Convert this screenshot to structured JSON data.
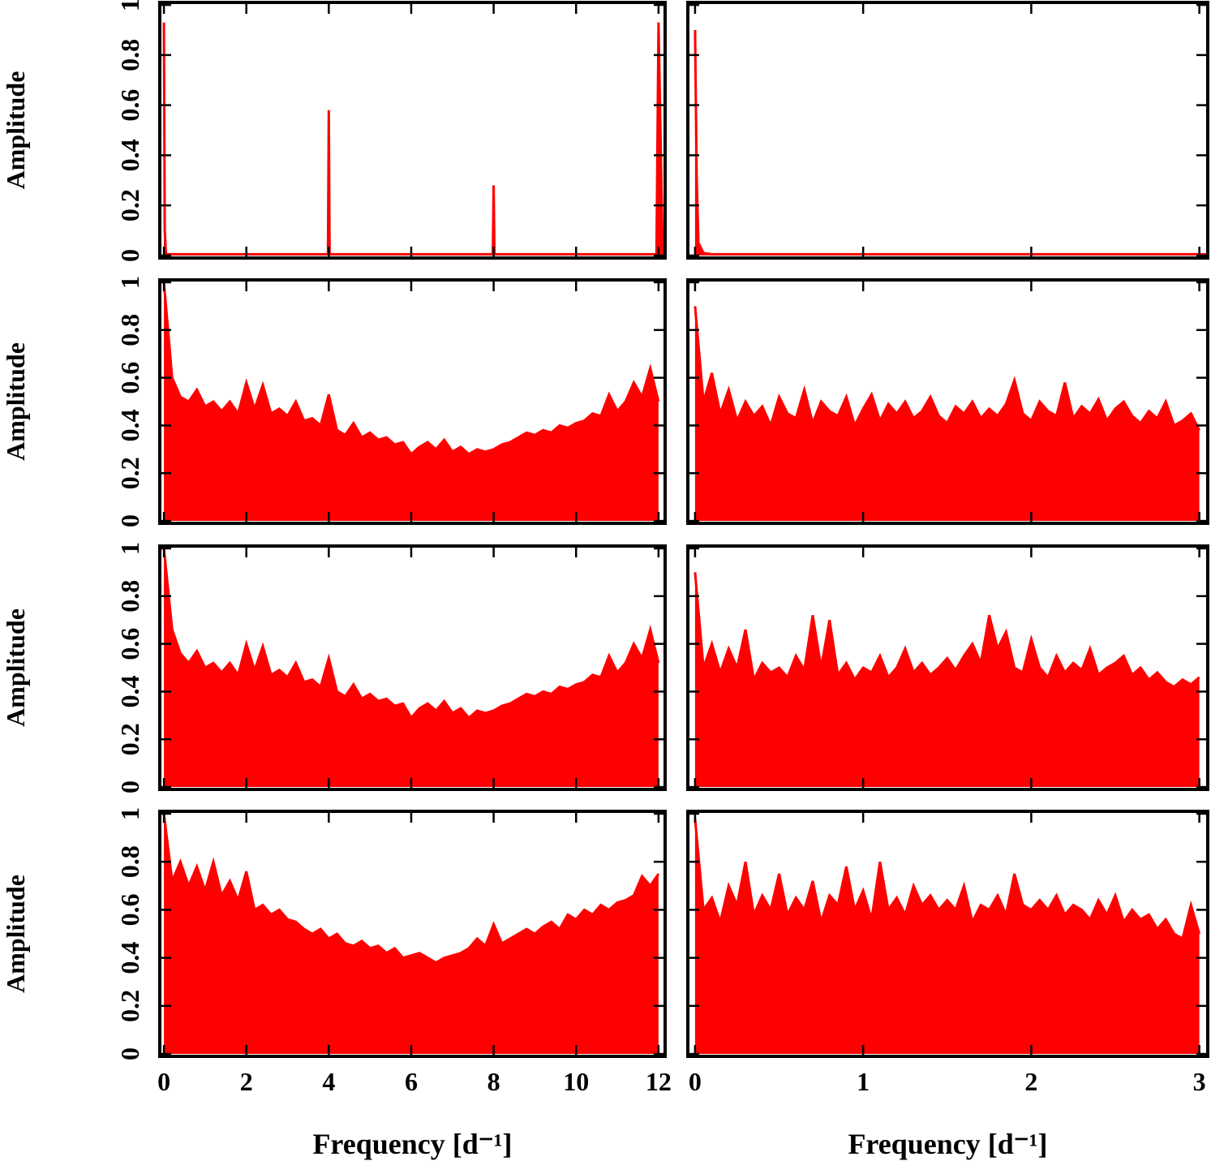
{
  "chart_data": [
    {
      "type": "area",
      "color": "#ff0000",
      "ylabel": "Amplitude",
      "xlim": [
        -0.1,
        12.16
      ],
      "ylim": [
        -0.01,
        1.01
      ],
      "xticks": [
        0,
        2,
        4,
        6,
        8,
        10,
        12
      ],
      "yticks": [
        0,
        0.2,
        0.4,
        0.6,
        0.8,
        1
      ],
      "xtick_labels": false,
      "ytick_labels": true,
      "x": [
        0,
        0.02,
        0.05,
        3.98,
        4,
        4.02,
        7.98,
        8,
        8.02,
        11.95,
        12,
        12.1
      ],
      "values": [
        0.93,
        0.1,
        0.005,
        0.005,
        0.58,
        0.005,
        0.005,
        0.28,
        0.005,
        0.005,
        0.93,
        0.005
      ]
    },
    {
      "type": "area",
      "color": "#ff0000",
      "xlim": [
        -0.043,
        3.05
      ],
      "ylim": [
        -0.01,
        1.01
      ],
      "xticks": [
        0,
        1,
        2,
        3
      ],
      "yticks": [
        0,
        0.2,
        0.4,
        0.6,
        0.8,
        1
      ],
      "xtick_labels": false,
      "ytick_labels": false,
      "x": [
        0,
        0.01,
        0.02,
        0.05,
        0.1,
        3.05
      ],
      "values": [
        0.9,
        0.3,
        0.05,
        0.01,
        0.005,
        0.005
      ]
    },
    {
      "type": "area",
      "color": "#ff0000",
      "ylabel": "Amplitude",
      "xlim": [
        -0.1,
        12.16
      ],
      "ylim": [
        -0.01,
        1.01
      ],
      "xticks": [
        0,
        2,
        4,
        6,
        8,
        10,
        12
      ],
      "yticks": [
        0,
        0.2,
        0.4,
        0.6,
        0.8,
        1
      ],
      "xtick_labels": false,
      "ytick_labels": true,
      "x": [
        0,
        0.2,
        0.4,
        0.6,
        0.8,
        1,
        1.2,
        1.4,
        1.6,
        1.8,
        2,
        2.2,
        2.4,
        2.6,
        2.8,
        3,
        3.2,
        3.4,
        3.6,
        3.8,
        4,
        4.2,
        4.4,
        4.6,
        4.8,
        5,
        5.2,
        5.4,
        5.6,
        5.8,
        6,
        6.2,
        6.4,
        6.6,
        6.8,
        7,
        7.2,
        7.4,
        7.6,
        7.8,
        8,
        8.2,
        8.4,
        8.6,
        8.8,
        9,
        9.2,
        9.4,
        9.6,
        9.8,
        10,
        10.2,
        10.4,
        10.6,
        10.8,
        11,
        11.2,
        11.4,
        11.6,
        11.8,
        12
      ],
      "values": [
        1.0,
        0.6,
        0.52,
        0.5,
        0.55,
        0.48,
        0.5,
        0.46,
        0.5,
        0.45,
        0.58,
        0.47,
        0.57,
        0.45,
        0.47,
        0.44,
        0.5,
        0.42,
        0.43,
        0.4,
        0.53,
        0.38,
        0.36,
        0.41,
        0.35,
        0.37,
        0.34,
        0.35,
        0.32,
        0.33,
        0.28,
        0.31,
        0.33,
        0.3,
        0.34,
        0.29,
        0.31,
        0.28,
        0.3,
        0.29,
        0.3,
        0.32,
        0.33,
        0.35,
        0.37,
        0.36,
        0.38,
        0.37,
        0.4,
        0.39,
        0.41,
        0.42,
        0.45,
        0.44,
        0.53,
        0.46,
        0.5,
        0.58,
        0.52,
        0.64,
        0.5
      ]
    },
    {
      "type": "area",
      "color": "#ff0000",
      "xlim": [
        -0.043,
        3.05
      ],
      "ylim": [
        -0.01,
        1.01
      ],
      "xticks": [
        0,
        1,
        2,
        3
      ],
      "yticks": [
        0,
        0.2,
        0.4,
        0.6,
        0.8,
        1
      ],
      "xtick_labels": false,
      "ytick_labels": false,
      "x": [
        0,
        0.05,
        0.1,
        0.15,
        0.2,
        0.25,
        0.3,
        0.35,
        0.4,
        0.45,
        0.5,
        0.55,
        0.6,
        0.65,
        0.7,
        0.75,
        0.8,
        0.85,
        0.9,
        0.95,
        1,
        1.05,
        1.1,
        1.15,
        1.2,
        1.25,
        1.3,
        1.35,
        1.4,
        1.45,
        1.5,
        1.55,
        1.6,
        1.65,
        1.7,
        1.75,
        1.8,
        1.85,
        1.9,
        1.95,
        2,
        2.05,
        2.1,
        2.15,
        2.2,
        2.25,
        2.3,
        2.35,
        2.4,
        2.45,
        2.5,
        2.55,
        2.6,
        2.65,
        2.7,
        2.75,
        2.8,
        2.85,
        2.9,
        2.95,
        3
      ],
      "values": [
        0.9,
        0.5,
        0.62,
        0.45,
        0.55,
        0.42,
        0.5,
        0.44,
        0.48,
        0.4,
        0.52,
        0.45,
        0.43,
        0.55,
        0.41,
        0.5,
        0.46,
        0.44,
        0.52,
        0.4,
        0.47,
        0.53,
        0.42,
        0.49,
        0.45,
        0.5,
        0.43,
        0.46,
        0.52,
        0.44,
        0.41,
        0.48,
        0.45,
        0.5,
        0.43,
        0.47,
        0.44,
        0.49,
        0.59,
        0.45,
        0.42,
        0.5,
        0.46,
        0.44,
        0.58,
        0.43,
        0.48,
        0.45,
        0.51,
        0.42,
        0.47,
        0.5,
        0.44,
        0.41,
        0.46,
        0.43,
        0.5,
        0.4,
        0.42,
        0.45,
        0.38
      ]
    },
    {
      "type": "area",
      "color": "#ff0000",
      "ylabel": "Amplitude",
      "xlim": [
        -0.1,
        12.16
      ],
      "ylim": [
        -0.01,
        1.01
      ],
      "xticks": [
        0,
        2,
        4,
        6,
        8,
        10,
        12
      ],
      "yticks": [
        0,
        0.2,
        0.4,
        0.6,
        0.8,
        1
      ],
      "xtick_labels": false,
      "ytick_labels": true,
      "x": [
        0,
        0.2,
        0.4,
        0.6,
        0.8,
        1,
        1.2,
        1.4,
        1.6,
        1.8,
        2,
        2.2,
        2.4,
        2.6,
        2.8,
        3,
        3.2,
        3.4,
        3.6,
        3.8,
        4,
        4.2,
        4.4,
        4.6,
        4.8,
        5,
        5.2,
        5.4,
        5.6,
        5.8,
        6,
        6.2,
        6.4,
        6.6,
        6.8,
        7,
        7.2,
        7.4,
        7.6,
        7.8,
        8,
        8.2,
        8.4,
        8.6,
        8.8,
        9,
        9.2,
        9.4,
        9.6,
        9.8,
        10,
        10.2,
        10.4,
        10.6,
        10.8,
        11,
        11.2,
        11.4,
        11.6,
        11.8,
        12
      ],
      "values": [
        1.0,
        0.66,
        0.56,
        0.52,
        0.57,
        0.5,
        0.52,
        0.48,
        0.52,
        0.47,
        0.6,
        0.49,
        0.59,
        0.47,
        0.49,
        0.46,
        0.52,
        0.44,
        0.45,
        0.42,
        0.54,
        0.4,
        0.38,
        0.43,
        0.37,
        0.39,
        0.36,
        0.37,
        0.34,
        0.35,
        0.29,
        0.33,
        0.35,
        0.32,
        0.36,
        0.31,
        0.33,
        0.29,
        0.32,
        0.31,
        0.32,
        0.34,
        0.35,
        0.37,
        0.39,
        0.38,
        0.4,
        0.39,
        0.42,
        0.41,
        0.43,
        0.44,
        0.47,
        0.46,
        0.55,
        0.48,
        0.52,
        0.6,
        0.54,
        0.66,
        0.52
      ]
    },
    {
      "type": "area",
      "color": "#ff0000",
      "xlim": [
        -0.043,
        3.05
      ],
      "ylim": [
        -0.01,
        1.01
      ],
      "xticks": [
        0,
        1,
        2,
        3
      ],
      "yticks": [
        0,
        0.2,
        0.4,
        0.6,
        0.8,
        1
      ],
      "xtick_labels": false,
      "ytick_labels": false,
      "x": [
        0,
        0.05,
        0.1,
        0.15,
        0.2,
        0.25,
        0.3,
        0.35,
        0.4,
        0.45,
        0.5,
        0.55,
        0.6,
        0.65,
        0.7,
        0.75,
        0.8,
        0.85,
        0.9,
        0.95,
        1,
        1.05,
        1.1,
        1.15,
        1.2,
        1.25,
        1.3,
        1.35,
        1.4,
        1.45,
        1.5,
        1.55,
        1.6,
        1.65,
        1.7,
        1.75,
        1.8,
        1.85,
        1.9,
        1.95,
        2,
        2.05,
        2.1,
        2.15,
        2.2,
        2.25,
        2.3,
        2.35,
        2.4,
        2.45,
        2.5,
        2.55,
        2.6,
        2.65,
        2.7,
        2.75,
        2.8,
        2.85,
        2.9,
        2.95,
        3
      ],
      "values": [
        0.9,
        0.5,
        0.6,
        0.48,
        0.58,
        0.5,
        0.66,
        0.45,
        0.52,
        0.48,
        0.5,
        0.46,
        0.55,
        0.49,
        0.72,
        0.5,
        0.7,
        0.47,
        0.52,
        0.45,
        0.5,
        0.48,
        0.55,
        0.46,
        0.5,
        0.58,
        0.48,
        0.52,
        0.47,
        0.5,
        0.54,
        0.49,
        0.55,
        0.6,
        0.52,
        0.72,
        0.58,
        0.65,
        0.5,
        0.48,
        0.62,
        0.5,
        0.46,
        0.55,
        0.48,
        0.52,
        0.49,
        0.58,
        0.47,
        0.5,
        0.52,
        0.55,
        0.47,
        0.5,
        0.45,
        0.48,
        0.44,
        0.42,
        0.45,
        0.43,
        0.46
      ]
    },
    {
      "type": "area",
      "color": "#ff0000",
      "ylabel": "Amplitude",
      "xlabel": "Frequency [d⁻¹]",
      "xlim": [
        -0.1,
        12.16
      ],
      "ylim": [
        -0.01,
        1.01
      ],
      "xticks": [
        0,
        2,
        4,
        6,
        8,
        10,
        12
      ],
      "yticks": [
        0,
        0.2,
        0.4,
        0.6,
        0.8,
        1
      ],
      "xtick_labels": true,
      "ytick_labels": true,
      "x": [
        0,
        0.2,
        0.4,
        0.6,
        0.8,
        1,
        1.2,
        1.4,
        1.6,
        1.8,
        2,
        2.2,
        2.4,
        2.6,
        2.8,
        3,
        3.2,
        3.4,
        3.6,
        3.8,
        4,
        4.2,
        4.4,
        4.6,
        4.8,
        5,
        5.2,
        5.4,
        5.6,
        5.8,
        6,
        6.2,
        6.4,
        6.6,
        6.8,
        7,
        7.2,
        7.4,
        7.6,
        7.8,
        8,
        8.2,
        8.4,
        8.6,
        8.8,
        9,
        9.2,
        9.4,
        9.6,
        9.8,
        10,
        10.2,
        10.4,
        10.6,
        10.8,
        11,
        11.2,
        11.4,
        11.6,
        11.8,
        12
      ],
      "values": [
        1.0,
        0.72,
        0.8,
        0.7,
        0.78,
        0.68,
        0.8,
        0.66,
        0.72,
        0.64,
        0.76,
        0.6,
        0.62,
        0.58,
        0.6,
        0.56,
        0.55,
        0.52,
        0.5,
        0.52,
        0.48,
        0.5,
        0.46,
        0.45,
        0.47,
        0.44,
        0.45,
        0.42,
        0.44,
        0.4,
        0.41,
        0.42,
        0.4,
        0.38,
        0.4,
        0.41,
        0.42,
        0.44,
        0.48,
        0.45,
        0.54,
        0.46,
        0.48,
        0.5,
        0.52,
        0.5,
        0.53,
        0.55,
        0.52,
        0.58,
        0.56,
        0.6,
        0.58,
        0.62,
        0.6,
        0.63,
        0.64,
        0.66,
        0.74,
        0.7,
        0.75
      ]
    },
    {
      "type": "area",
      "color": "#ff0000",
      "xlabel": "Frequency [d⁻¹]",
      "xlim": [
        -0.043,
        3.05
      ],
      "ylim": [
        -0.01,
        1.01
      ],
      "xticks": [
        0,
        1,
        2,
        3
      ],
      "yticks": [
        0,
        0.2,
        0.4,
        0.6,
        0.8,
        1
      ],
      "xtick_labels": true,
      "ytick_labels": false,
      "x": [
        0,
        0.05,
        0.1,
        0.15,
        0.2,
        0.25,
        0.3,
        0.35,
        0.4,
        0.45,
        0.5,
        0.55,
        0.6,
        0.65,
        0.7,
        0.75,
        0.8,
        0.85,
        0.9,
        0.95,
        1,
        1.05,
        1.1,
        1.15,
        1.2,
        1.25,
        1.3,
        1.35,
        1.4,
        1.45,
        1.5,
        1.55,
        1.6,
        1.65,
        1.7,
        1.75,
        1.8,
        1.85,
        1.9,
        1.95,
        2,
        2.05,
        2.1,
        2.15,
        2.2,
        2.25,
        2.3,
        2.35,
        2.4,
        2.45,
        2.5,
        2.55,
        2.6,
        2.65,
        2.7,
        2.75,
        2.8,
        2.85,
        2.9,
        2.95,
        3
      ],
      "values": [
        0.98,
        0.6,
        0.65,
        0.55,
        0.7,
        0.62,
        0.8,
        0.58,
        0.66,
        0.6,
        0.75,
        0.58,
        0.65,
        0.6,
        0.72,
        0.55,
        0.66,
        0.62,
        0.78,
        0.6,
        0.68,
        0.56,
        0.8,
        0.6,
        0.65,
        0.58,
        0.7,
        0.62,
        0.66,
        0.6,
        0.64,
        0.6,
        0.7,
        0.55,
        0.62,
        0.6,
        0.66,
        0.58,
        0.75,
        0.62,
        0.6,
        0.64,
        0.6,
        0.66,
        0.58,
        0.62,
        0.6,
        0.56,
        0.64,
        0.58,
        0.66,
        0.55,
        0.6,
        0.56,
        0.58,
        0.52,
        0.56,
        0.5,
        0.48,
        0.62,
        0.5
      ]
    }
  ]
}
